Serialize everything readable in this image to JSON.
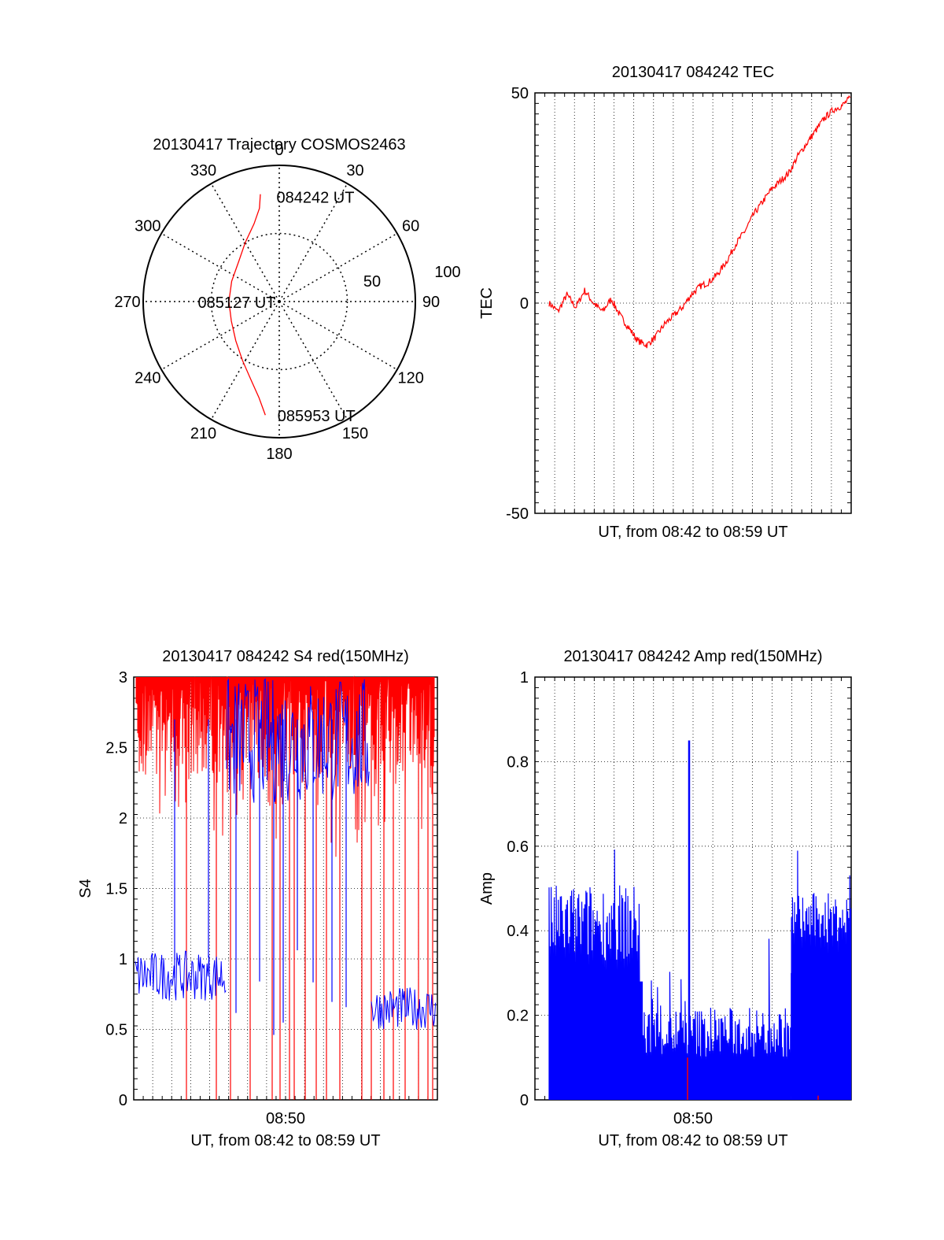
{
  "colors": {
    "red": "#ff0000",
    "blue": "#0000ff",
    "axis": "#000000",
    "grid": "#000000"
  },
  "chart_data": [
    {
      "type": "polar",
      "title": "20130417 Trajectory COSMOS2463",
      "angle_labels": [
        "0",
        "30",
        "60",
        "90",
        "120",
        "150",
        "180",
        "210",
        "240",
        "270",
        "300",
        "330"
      ],
      "radius_labels": [
        "50",
        "100"
      ],
      "radius_range": [
        0,
        100
      ],
      "trajectory": {
        "color": "red",
        "points_az_el": [
          [
            350,
            80
          ],
          [
            348,
            70
          ],
          [
            342,
            60
          ],
          [
            330,
            50
          ],
          [
            315,
            42
          ],
          [
            293,
            38
          ],
          [
            270,
            37
          ],
          [
            248,
            38
          ],
          [
            228,
            43
          ],
          [
            212,
            51
          ],
          [
            200,
            61
          ],
          [
            192,
            72
          ],
          [
            187,
            84
          ]
        ]
      },
      "annotations": [
        {
          "text": "084242 UT",
          "az": 350,
          "el": 80
        },
        {
          "text": "085127 UT",
          "az": 270,
          "el": 37
        },
        {
          "text": "085953 UT",
          "az": 187,
          "el": 84
        }
      ]
    },
    {
      "type": "line",
      "title": "20130417 084242 TEC",
      "xlabel": "UT, from 08:42 to 08:59 UT",
      "ylabel": "TEC",
      "ylim": [
        -50,
        50
      ],
      "yticks": [
        "-50",
        "0",
        "50"
      ],
      "series": [
        {
          "color": "red",
          "points": [
            [
              0,
              0
            ],
            [
              0.3,
              -2
            ],
            [
              0.6,
              2
            ],
            [
              0.9,
              -1
            ],
            [
              1.2,
              3
            ],
            [
              1.5,
              0
            ],
            [
              1.8,
              -2
            ],
            [
              2.1,
              1
            ],
            [
              2.4,
              -3
            ],
            [
              2.7,
              -6
            ],
            [
              3.0,
              -9
            ],
            [
              3.3,
              -10
            ],
            [
              3.6,
              -8
            ],
            [
              3.9,
              -5
            ],
            [
              4.2,
              -3
            ],
            [
              4.5,
              -1
            ],
            [
              4.8,
              2
            ],
            [
              5.1,
              4
            ],
            [
              5.4,
              5
            ],
            [
              5.7,
              7
            ],
            [
              6.0,
              10
            ],
            [
              6.3,
              14
            ],
            [
              6.6,
              17
            ],
            [
              6.9,
              21
            ],
            [
              7.2,
              24
            ],
            [
              7.5,
              27
            ],
            [
              7.8,
              29
            ],
            [
              8.1,
              31
            ],
            [
              8.4,
              35
            ],
            [
              8.7,
              38
            ],
            [
              9.0,
              41
            ],
            [
              9.3,
              44
            ],
            [
              9.6,
              46
            ],
            [
              9.9,
              47
            ],
            [
              10.2,
              49
            ]
          ]
        }
      ]
    },
    {
      "type": "line",
      "title": "20130417 084242 S4 red(150MHz)",
      "xlabel": "UT, from 08:42 to 08:59 UT",
      "ylabel": "S4",
      "ylim": [
        0,
        3
      ],
      "yticks": [
        "0",
        "0.5",
        "1",
        "1.5",
        "2",
        "2.5",
        "3"
      ],
      "xticks": [
        "08:50"
      ],
      "series": [
        {
          "color": "red",
          "description_points": "dense near 2.3-3 across the pass with drops to 0"
        },
        {
          "color": "blue",
          "levels": [
            [
              0,
              0.9
            ],
            [
              0.3,
              0.85
            ],
            [
              2.1,
              1.8
            ],
            [
              3.0,
              2.4
            ],
            [
              4.8,
              2.3
            ],
            [
              5.4,
              1.0
            ],
            [
              5.8,
              0.65
            ],
            [
              7.8,
              0.65
            ]
          ]
        }
      ]
    },
    {
      "type": "line",
      "title": "20130417 084242 Amp red(150MHz)",
      "xlabel": "UT, from 08:42 to 08:59 UT",
      "ylabel": "Amp",
      "ylim": [
        0,
        1
      ],
      "yticks": [
        "0",
        "0.2",
        "0.4",
        "0.6",
        "0.8",
        "1"
      ],
      "xticks": [
        "08:50"
      ],
      "series": [
        {
          "color": "blue",
          "levels": [
            [
              0,
              0.4
            ],
            [
              0.3,
              0.42
            ],
            [
              0.9,
              0.41
            ],
            [
              1.2,
              0.2
            ],
            [
              1.6,
              0.15
            ],
            [
              2.0,
              0.8
            ],
            [
              2.2,
              0.16
            ],
            [
              2.6,
              0.14
            ],
            [
              3.0,
              0.13
            ],
            [
              3.3,
              0.45
            ],
            [
              4.0,
              0.45
            ]
          ]
        },
        {
          "color": "red",
          "levels": [
            [
              2.2,
              0.1
            ]
          ]
        }
      ]
    }
  ]
}
